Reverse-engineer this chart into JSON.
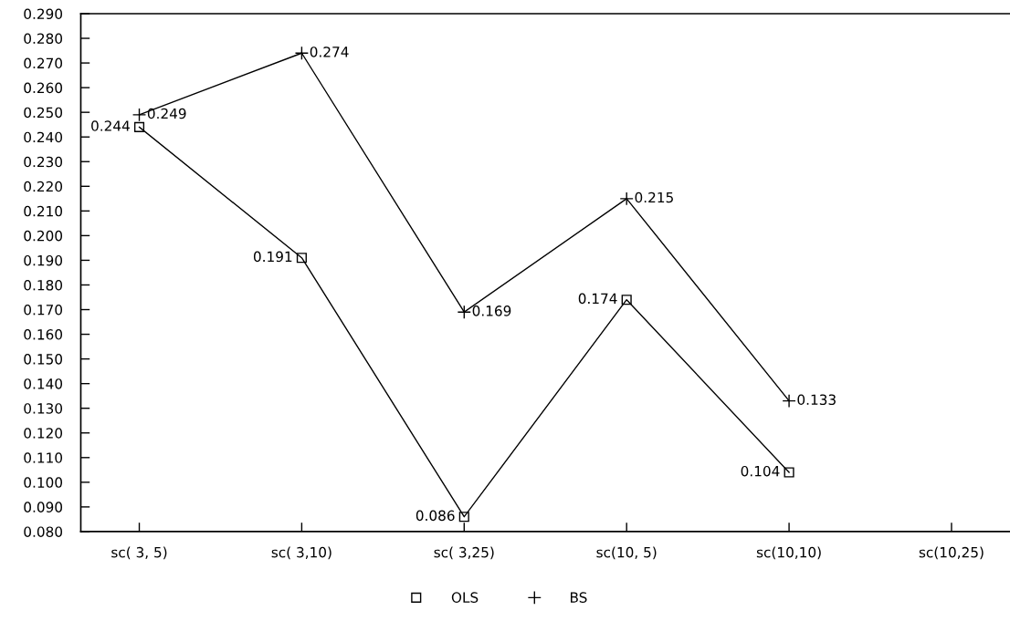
{
  "chart_data": {
    "type": "line",
    "categories": [
      "sc( 3, 5)",
      "sc( 3,10)",
      "sc( 3,25)",
      "sc(10, 5)",
      "sc(10,10)",
      "sc(10,25)"
    ],
    "series": [
      {
        "name": "OLS",
        "color": "#000000",
        "marker": "square",
        "values": [
          0.244,
          0.191,
          0.086,
          0.174,
          0.104,
          null
        ]
      },
      {
        "name": "BS",
        "color": "#000000",
        "marker": "cross",
        "values": [
          0.249,
          0.274,
          0.169,
          0.215,
          0.133,
          null
        ]
      }
    ],
    "ylim": [
      0.08,
      0.29
    ],
    "yticks": [
      {
        "value": 0.08,
        "label": "0.080"
      },
      {
        "value": 0.09,
        "label": "0.090"
      },
      {
        "value": 0.1,
        "label": "0.100"
      },
      {
        "value": 0.11,
        "label": "0.110"
      },
      {
        "value": 0.12,
        "label": "0.120"
      },
      {
        "value": 0.13,
        "label": "0.130"
      },
      {
        "value": 0.14,
        "label": "0.140"
      },
      {
        "value": 0.15,
        "label": "0.150"
      },
      {
        "value": 0.16,
        "label": "0.160"
      },
      {
        "value": 0.17,
        "label": "0.170"
      },
      {
        "value": 0.18,
        "label": "0.180"
      },
      {
        "value": 0.19,
        "label": "0.190"
      },
      {
        "value": 0.2,
        "label": "0.200"
      },
      {
        "value": 0.21,
        "label": "0.210"
      },
      {
        "value": 0.22,
        "label": "0.220"
      },
      {
        "value": 0.23,
        "label": "0.230"
      },
      {
        "value": 0.24,
        "label": "0.240"
      },
      {
        "value": 0.25,
        "label": "0.250"
      },
      {
        "value": 0.26,
        "label": "0.260"
      },
      {
        "value": 0.27,
        "label": "0.270"
      },
      {
        "value": 0.28,
        "label": "0.280"
      },
      {
        "value": 0.29,
        "label": "0.290"
      }
    ],
    "data_labels": true,
    "legend": "bottom",
    "line_style": "solid"
  }
}
